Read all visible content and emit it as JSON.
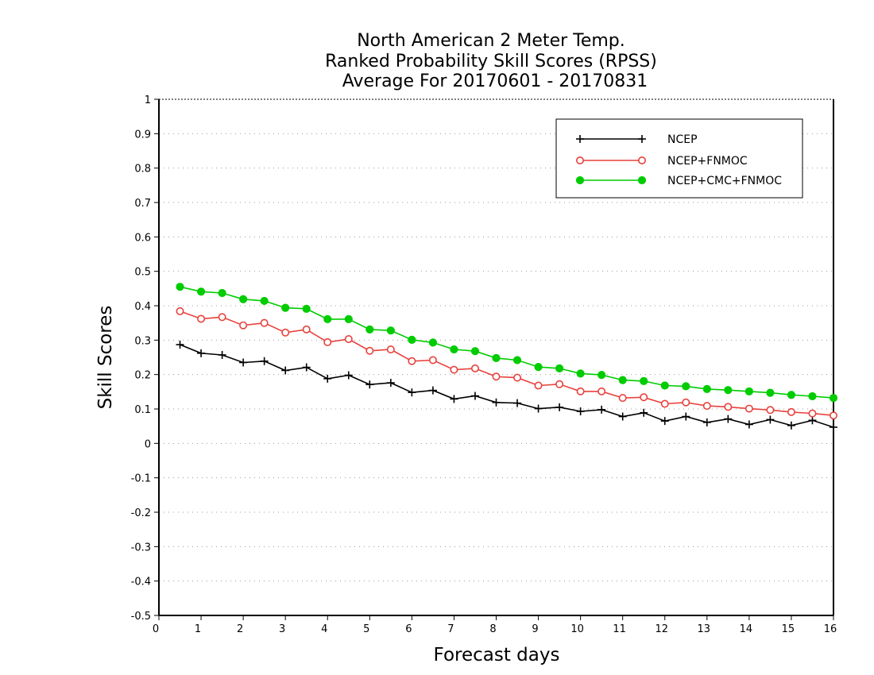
{
  "chart_data": {
    "type": "line",
    "title": [
      "North American 2 Meter Temp.",
      "Ranked Probability Skill Scores (RPSS)",
      "Average For 20170601 - 20170831"
    ],
    "xlabel": "Forecast days",
    "ylabel": "Skill Scores",
    "xlim": [
      0,
      16
    ],
    "ylim": [
      -0.5,
      1
    ],
    "xticks": [
      0,
      1,
      2,
      3,
      4,
      5,
      6,
      7,
      8,
      9,
      10,
      11,
      12,
      13,
      14,
      15,
      16
    ],
    "yticks": [
      -0.5,
      -0.4,
      -0.3,
      -0.2,
      -0.1,
      0,
      0.1,
      0.2,
      0.3,
      0.4,
      0.5,
      0.6,
      0.7,
      0.8,
      0.9,
      1
    ],
    "ytick_labels": [
      "-0.5",
      "-0.4",
      "-0.3",
      "-0.2",
      "-0.1",
      "0",
      "0.1",
      "0.2",
      "0.3",
      "0.4",
      "0.5",
      "0.6",
      "0.7",
      "0.8",
      "0.9",
      "1"
    ],
    "grid": "horizontal-dotted",
    "legend_position": "top-right",
    "x": [
      0.5,
      1,
      1.5,
      2,
      2.5,
      3,
      3.5,
      4,
      4.5,
      5,
      5.5,
      6,
      6.5,
      7,
      7.5,
      8,
      8.5,
      9,
      9.5,
      10,
      10.5,
      11,
      11.5,
      12,
      12.5,
      13,
      13.5,
      14,
      14.5,
      15,
      15.5,
      16
    ],
    "series": [
      {
        "name": "NCEP",
        "color": "#000000",
        "marker": "plus",
        "values": [
          0.287,
          0.262,
          0.257,
          0.235,
          0.239,
          0.212,
          0.221,
          0.188,
          0.198,
          0.171,
          0.176,
          0.148,
          0.154,
          0.129,
          0.138,
          0.119,
          0.117,
          0.101,
          0.105,
          0.093,
          0.098,
          0.078,
          0.089,
          0.065,
          0.078,
          0.061,
          0.071,
          0.055,
          0.069,
          0.052,
          0.067,
          0.047
        ]
      },
      {
        "name": "NCEP+FNMOC",
        "color": "#e8413c",
        "marker": "open-circle",
        "values": [
          0.384,
          0.362,
          0.367,
          0.343,
          0.35,
          0.322,
          0.331,
          0.294,
          0.303,
          0.269,
          0.273,
          0.239,
          0.242,
          0.214,
          0.218,
          0.194,
          0.191,
          0.168,
          0.172,
          0.151,
          0.151,
          0.132,
          0.134,
          0.115,
          0.119,
          0.109,
          0.106,
          0.101,
          0.097,
          0.091,
          0.087,
          0.081
        ]
      },
      {
        "name": "NCEP+CMC+FNMOC",
        "color": "#00cc00",
        "marker": "filled-circle",
        "values": [
          0.455,
          0.441,
          0.437,
          0.419,
          0.414,
          0.394,
          0.391,
          0.361,
          0.361,
          0.331,
          0.328,
          0.301,
          0.293,
          0.273,
          0.268,
          0.248,
          0.242,
          0.222,
          0.218,
          0.203,
          0.199,
          0.184,
          0.181,
          0.168,
          0.166,
          0.158,
          0.155,
          0.151,
          0.147,
          0.141,
          0.137,
          0.132
        ]
      }
    ]
  }
}
